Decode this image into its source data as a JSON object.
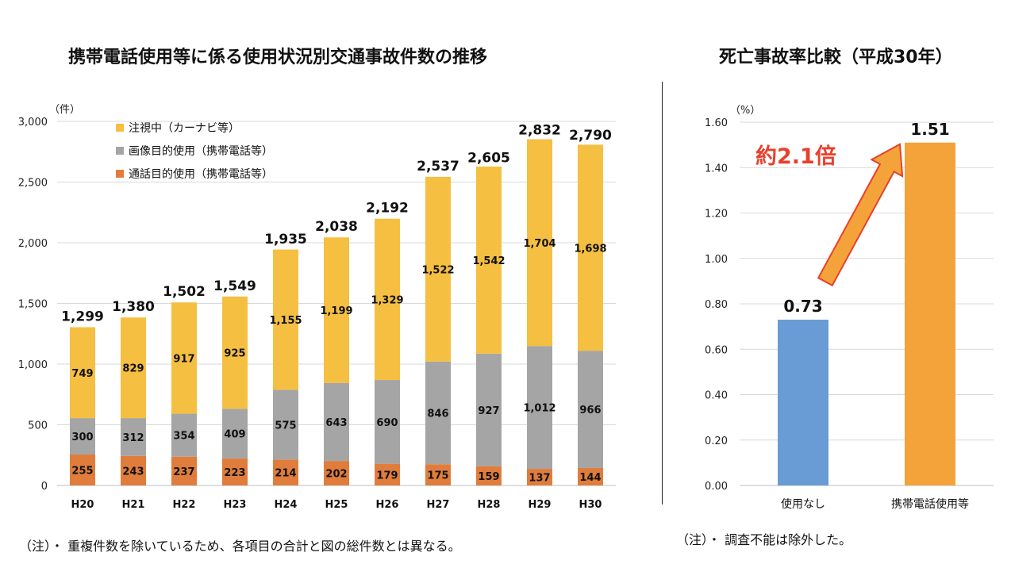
{
  "left_title": "携帯電話使用等に係る使用状況別交通事故件数の推移",
  "right_title": "死亡事故率比較（平成30年）",
  "left_note": "（注）・ 重複件数を除いているため、各項目の合計と図の総件数とは異なる。",
  "right_note": "（注）・ 調査不能は除外した。",
  "chart_data": [
    {
      "type": "bar",
      "stacked": true,
      "title": "携帯電話使用等に係る使用状況別交通事故件数の推移",
      "ylabel": "（件）",
      "ylim": [
        0,
        3000
      ],
      "yticks": [
        "0",
        "500",
        "1,000",
        "1,500",
        "2,000",
        "2,500",
        "3,000"
      ],
      "grid": true,
      "legend_position": "top-left",
      "categories": [
        "H20",
        "H21",
        "H22",
        "H23",
        "H24",
        "H25",
        "H26",
        "H27",
        "H28",
        "H29",
        "H30"
      ],
      "series": [
        {
          "name": "通話目的使用（携帯電話等）",
          "color": "#E07D3C",
          "values": [
            255,
            243,
            237,
            223,
            214,
            202,
            179,
            175,
            159,
            137,
            144
          ],
          "labels": [
            "255",
            "243",
            "237",
            "223",
            "214",
            "202",
            "179",
            "175",
            "159",
            "137",
            "144"
          ]
        },
        {
          "name": "画像目的使用（携帯電話等）",
          "color": "#A5A5A5",
          "values": [
            300,
            312,
            354,
            409,
            575,
            643,
            690,
            846,
            927,
            1012,
            966
          ],
          "labels": [
            "300",
            "312",
            "354",
            "409",
            "575",
            "643",
            "690",
            "846",
            "927",
            "1,012",
            "966"
          ]
        },
        {
          "name": "注視中（カーナビ等）",
          "color": "#F5BF42",
          "values": [
            749,
            829,
            917,
            925,
            1155,
            1199,
            1329,
            1522,
            1542,
            1704,
            1698
          ],
          "labels": [
            "749",
            "829",
            "917",
            "925",
            "1,155",
            "1,199",
            "1,329",
            "1,522",
            "1,542",
            "1,704",
            "1,698"
          ]
        }
      ],
      "totals": [
        1299,
        1380,
        1502,
        1549,
        1935,
        2038,
        2192,
        2537,
        2605,
        2832,
        2790
      ],
      "total_labels": [
        "1,299",
        "1,380",
        "1,502",
        "1,549",
        "1,935",
        "2,038",
        "2,192",
        "2,537",
        "2,605",
        "2,832",
        "2,790"
      ]
    },
    {
      "type": "bar",
      "title": "死亡事故率比較（平成30年）",
      "ylabel": "（%）",
      "ylim": [
        0,
        1.6
      ],
      "yticks": [
        "0.00",
        "0.20",
        "0.40",
        "0.60",
        "0.80",
        "1.00",
        "1.20",
        "1.40",
        "1.60"
      ],
      "grid": true,
      "categories": [
        "使用なし",
        "携帯電話使用等"
      ],
      "values": [
        0.73,
        1.51
      ],
      "value_labels": [
        "0.73",
        "1.51"
      ],
      "colors": [
        "#699BD4",
        "#F3A33A"
      ],
      "annotation": "約2.1倍",
      "annotation_color": "#E8402C"
    }
  ]
}
